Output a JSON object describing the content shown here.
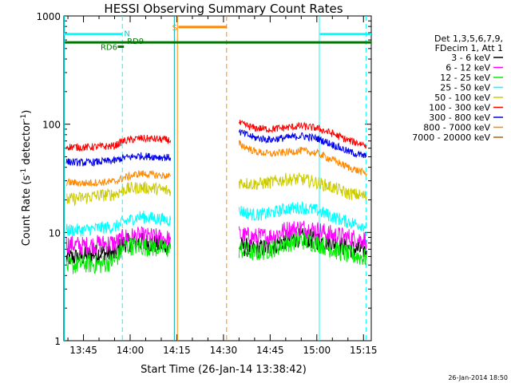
{
  "chart_data": {
    "type": "line",
    "title": "HESSI Observing Summary Count Rates",
    "xlabel": "Start Time (26-Jan-14 13:38:42)",
    "ylabel_main": "Count Rate (s",
    "ylabel_sup1": "-1",
    "ylabel_mid": " detector",
    "ylabel_sup2": "-1",
    "ylabel_end": ")",
    "y_scale": "log",
    "ylim": [
      1,
      1000
    ],
    "xlim_minutes": [
      38.7,
      137.5
    ],
    "x_ticks": [
      {
        "label": "13:45",
        "t": 45
      },
      {
        "label": "14:00",
        "t": 60
      },
      {
        "label": "14:15",
        "t": 75
      },
      {
        "label": "14:30",
        "t": 90
      },
      {
        "label": "14:45",
        "t": 105
      },
      {
        "label": "15:00",
        "t": 120
      },
      {
        "label": "15:15",
        "t": 135
      }
    ],
    "y_ticks": [
      {
        "label": "1",
        "v": 1
      },
      {
        "label": "10",
        "v": 10
      },
      {
        "label": "100",
        "v": 100
      },
      {
        "label": "1000",
        "v": 1000
      }
    ],
    "legend": {
      "header": [
        "Det 1,3,5,6,7,9,",
        "FDecim 1, Att 1"
      ],
      "entries": [
        {
          "label": "3 - 6 keV",
          "color": "#000000"
        },
        {
          "label": "6 - 12 keV",
          "color": "#ff00ff"
        },
        {
          "label": "12 - 25 keV",
          "color": "#00ee00"
        },
        {
          "label": "25 - 50 keV",
          "color": "#00ffff"
        },
        {
          "label": "50 - 100 keV",
          "color": "#cccc00"
        },
        {
          "label": "100 - 300 keV",
          "color": "#ff0000"
        },
        {
          "label": "300 - 800 keV",
          "color": "#0000ee"
        },
        {
          "label": "800 - 7000 keV",
          "color": "#ff8800"
        },
        {
          "label": "7000 - 20000 keV",
          "color": "#aa6600"
        }
      ]
    },
    "series": [
      {
        "name": "3 - 6 keV",
        "color": "#000000",
        "segments": [
          [
            [
              39.5,
              5.8
            ],
            [
              45,
              6
            ],
            [
              50,
              6.5
            ],
            [
              55,
              6.3
            ],
            [
              57,
              7.5
            ],
            [
              58,
              8
            ],
            [
              63,
              8.2
            ],
            [
              68,
              7.8
            ],
            [
              73,
              7.5
            ]
          ],
          [
            [
              95,
              7.5
            ],
            [
              100,
              7
            ],
            [
              105,
              7.3
            ],
            [
              110,
              8.5
            ],
            [
              115,
              9
            ],
            [
              120,
              8.5
            ],
            [
              125,
              8
            ],
            [
              130,
              7.2
            ],
            [
              136,
              6.8
            ]
          ]
        ]
      },
      {
        "name": "6 - 12 keV",
        "color": "#ff00ff",
        "segments": [
          [
            [
              39.5,
              7.8
            ],
            [
              45,
              7.5
            ],
            [
              50,
              7.8
            ],
            [
              55,
              8
            ],
            [
              57,
              8.5
            ],
            [
              58,
              9
            ],
            [
              63,
              9.2
            ],
            [
              68,
              9
            ],
            [
              73,
              8.6
            ]
          ],
          [
            [
              95,
              9.5
            ],
            [
              100,
              9
            ],
            [
              105,
              9.2
            ],
            [
              110,
              10.5
            ],
            [
              115,
              11
            ],
            [
              120,
              10.5
            ],
            [
              125,
              9.5
            ],
            [
              130,
              9
            ],
            [
              136,
              8.5
            ]
          ]
        ]
      },
      {
        "name": "12 - 25 keV",
        "color": "#00ee00",
        "segments": [
          [
            [
              39.5,
              4.8
            ],
            [
              45,
              5.2
            ],
            [
              50,
              5
            ],
            [
              55,
              5.5
            ],
            [
              57,
              6.5
            ],
            [
              58,
              7.5
            ],
            [
              63,
              7.5
            ],
            [
              68,
              7.2
            ],
            [
              73,
              7
            ]
          ],
          [
            [
              95,
              7
            ],
            [
              100,
              6.5
            ],
            [
              105,
              7
            ],
            [
              110,
              8
            ],
            [
              115,
              8.5
            ],
            [
              120,
              8
            ],
            [
              125,
              7
            ],
            [
              130,
              6.3
            ],
            [
              136,
              5.8
            ]
          ]
        ]
      },
      {
        "name": "25 - 50 keV",
        "color": "#00ffff",
        "segments": [
          [
            [
              39.5,
              10.5
            ],
            [
              45,
              10.5
            ],
            [
              50,
              11
            ],
            [
              55,
              11.2
            ],
            [
              57,
              12
            ],
            [
              58,
              12.5
            ],
            [
              63,
              14
            ],
            [
              68,
              13.5
            ],
            [
              73,
              13
            ]
          ],
          [
            [
              95,
              16
            ],
            [
              100,
              14.5
            ],
            [
              105,
              15
            ],
            [
              110,
              16.5
            ],
            [
              115,
              17
            ],
            [
              120,
              16
            ],
            [
              125,
              14
            ],
            [
              130,
              12.5
            ],
            [
              136,
              11.5
            ]
          ]
        ]
      },
      {
        "name": "50 - 100 keV",
        "color": "#cccc00",
        "segments": [
          [
            [
              39.5,
              20
            ],
            [
              45,
              21
            ],
            [
              50,
              22
            ],
            [
              55,
              22.5
            ],
            [
              57,
              24
            ],
            [
              58,
              25
            ],
            [
              63,
              26
            ],
            [
              68,
              25.5
            ],
            [
              73,
              24
            ]
          ],
          [
            [
              95,
              29
            ],
            [
              100,
              28
            ],
            [
              105,
              29
            ],
            [
              110,
              31
            ],
            [
              115,
              31
            ],
            [
              120,
              29
            ],
            [
              125,
              26
            ],
            [
              130,
              23
            ],
            [
              136,
              21.5
            ]
          ]
        ]
      },
      {
        "name": "100 - 300 keV",
        "color": "#ff0000",
        "segments": [
          [
            [
              39.5,
              62
            ],
            [
              45,
              61
            ],
            [
              50,
              62
            ],
            [
              55,
              63
            ],
            [
              57,
              68
            ],
            [
              58,
              70
            ],
            [
              63,
              74
            ],
            [
              68,
              73
            ],
            [
              73,
              71
            ]
          ],
          [
            [
              95,
              102
            ],
            [
              100,
              92
            ],
            [
              105,
              90
            ],
            [
              110,
              93
            ],
            [
              115,
              96
            ],
            [
              120,
              92
            ],
            [
              125,
              82
            ],
            [
              130,
              71
            ],
            [
              136,
              64
            ]
          ]
        ]
      },
      {
        "name": "300 - 800 keV",
        "color": "#0000ee",
        "segments": [
          [
            [
              39.5,
              45
            ],
            [
              45,
              44
            ],
            [
              50,
              45
            ],
            [
              55,
              46
            ],
            [
              57,
              48
            ],
            [
              58,
              49
            ],
            [
              63,
              51
            ],
            [
              68,
              50
            ],
            [
              73,
              49
            ]
          ],
          [
            [
              95,
              85
            ],
            [
              100,
              75
            ],
            [
              105,
              72
            ],
            [
              110,
              75
            ],
            [
              115,
              78
            ],
            [
              120,
              74
            ],
            [
              125,
              65
            ],
            [
              130,
              56
            ],
            [
              136,
              50
            ]
          ]
        ]
      },
      {
        "name": "800 - 7000 keV",
        "color": "#ff8800",
        "segments": [
          [
            [
              39.5,
              29
            ],
            [
              45,
              28.5
            ],
            [
              50,
              29
            ],
            [
              55,
              29.5
            ],
            [
              57,
              31
            ],
            [
              58,
              32
            ],
            [
              63,
              35
            ],
            [
              68,
              34
            ],
            [
              73,
              33
            ]
          ],
          [
            [
              95,
              66
            ],
            [
              100,
              56
            ],
            [
              105,
              53
            ],
            [
              110,
              55
            ],
            [
              115,
              57
            ],
            [
              120,
              54
            ],
            [
              125,
              47
            ],
            [
              130,
              40
            ],
            [
              136,
              35
            ]
          ]
        ]
      }
    ],
    "annotations": {
      "attenuator_bars": [
        {
          "label": "N",
          "color": "#00ffff",
          "t0": 38.7,
          "t1": 57.5,
          "v": 680
        },
        {
          "label": "",
          "color": "#00ffff",
          "t0": 121,
          "t1": 137.5,
          "v": 680
        }
      ],
      "flag_bars": [
        {
          "label": "S",
          "color": "#ff8800",
          "t0": 75.5,
          "t1": 91,
          "v": 790
        },
        {
          "label": "RD9",
          "color": "#007700",
          "t0": 39,
          "t1": 137.5,
          "v": 570
        },
        {
          "label": "RD6",
          "color": "#007700",
          "t0": 56,
          "t1": 58,
          "v": 520
        }
      ],
      "vlines": [
        {
          "t": 38.9,
          "color": "#00ffff",
          "style": "solid"
        },
        {
          "t": 57.5,
          "color": "#00ffff",
          "style": "dashed"
        },
        {
          "t": 120.8,
          "color": "#00ffff",
          "style": "solid"
        },
        {
          "t": 135.8,
          "color": "#00ffff",
          "style": "dashed"
        },
        {
          "t": 75.2,
          "color": "#ff8800",
          "style": "solid"
        },
        {
          "t": 91,
          "color": "#ff8800",
          "style": "dashed"
        },
        {
          "t": 74.2,
          "color": "#00aaaa",
          "style": "solid"
        }
      ]
    },
    "grid": false,
    "legend_position": "right"
  },
  "footer": {
    "timestamp": "26-Jan-2014 18:50"
  }
}
